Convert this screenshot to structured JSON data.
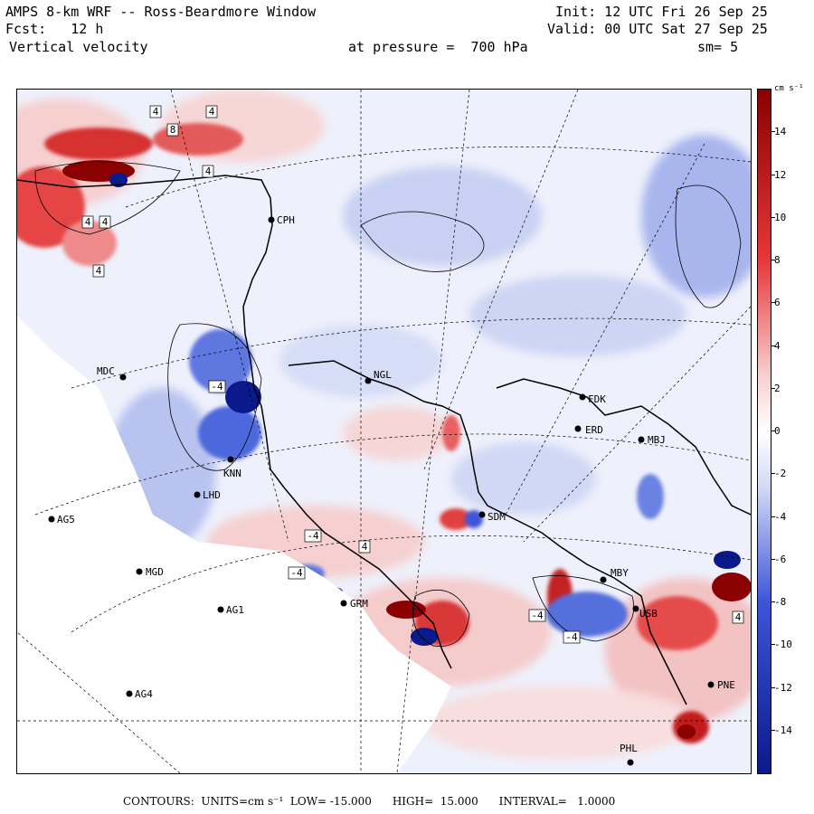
{
  "header": {
    "title": "AMPS 8-km WRF -- Ross-Beardmore Window",
    "forecast": "Fcst:   12 h",
    "variable": "Vertical velocity",
    "init": "Init: 12 UTC Fri 26 Sep 25",
    "valid": "Valid: 00 UTC Sat 27 Sep 25",
    "pressure_level": "at pressure =  700 hPa",
    "smoothing": "sm= 5"
  },
  "colorbar": {
    "unit": "cm s⁻¹",
    "labels": [
      "14",
      "12",
      "10",
      "8",
      "6",
      "4",
      "2",
      "0",
      "-2",
      "-4",
      "-6",
      "-8",
      "-10",
      "-12",
      "-14"
    ],
    "values": [
      14,
      12,
      10,
      8,
      6,
      4,
      2,
      0,
      -2,
      -4,
      -6,
      -8,
      -10,
      -12,
      -14
    ],
    "min": -16,
    "max": 16,
    "colors": {
      "strong_up": "#8b0000",
      "up": "#e8373a",
      "weak_up": "#f8d0d0",
      "neutral": "#ffffff",
      "weak_down": "#d3dbf5",
      "down": "#3c55d8",
      "strong_down": "#0a1a8c"
    }
  },
  "stations": [
    {
      "label": "CPH",
      "value": "CPH"
    },
    {
      "label": "MDC",
      "value": "MDC"
    },
    {
      "label": "NGL",
      "value": "NGL"
    },
    {
      "label": "FDK",
      "value": "FDK"
    },
    {
      "label": "ERD",
      "value": "ERD"
    },
    {
      "label": "MBJ",
      "value": "MBJ"
    },
    {
      "label": "KNN",
      "value": "KNN"
    },
    {
      "label": "LHD",
      "value": "LHD"
    },
    {
      "label": "AG5",
      "value": "AG5"
    },
    {
      "label": "SDM",
      "value": "SDM"
    },
    {
      "label": "MGD",
      "value": "MGD"
    },
    {
      "label": "AG1",
      "value": "AG1"
    },
    {
      "label": "GRM",
      "value": "GRM"
    },
    {
      "label": "MBY",
      "value": "MBY"
    },
    {
      "label": "USB",
      "value": "USB"
    },
    {
      "label": "AG4",
      "value": "AG4"
    },
    {
      "label": "PNE",
      "value": "PNE"
    },
    {
      "label": "PHL",
      "value": "PHL"
    }
  ],
  "contour_labels": [
    "4",
    "4",
    "8",
    "4",
    "4",
    "4",
    "4",
    "-4",
    "-4",
    "4",
    "-4",
    "-4",
    "-4",
    "4"
  ],
  "footer": {
    "contours": "CONTOURS:  UNITS=cm s⁻¹  LOW= -15.000",
    "high": "HIGH=  15.000",
    "interval": "INTERVAL=   1.0000"
  }
}
